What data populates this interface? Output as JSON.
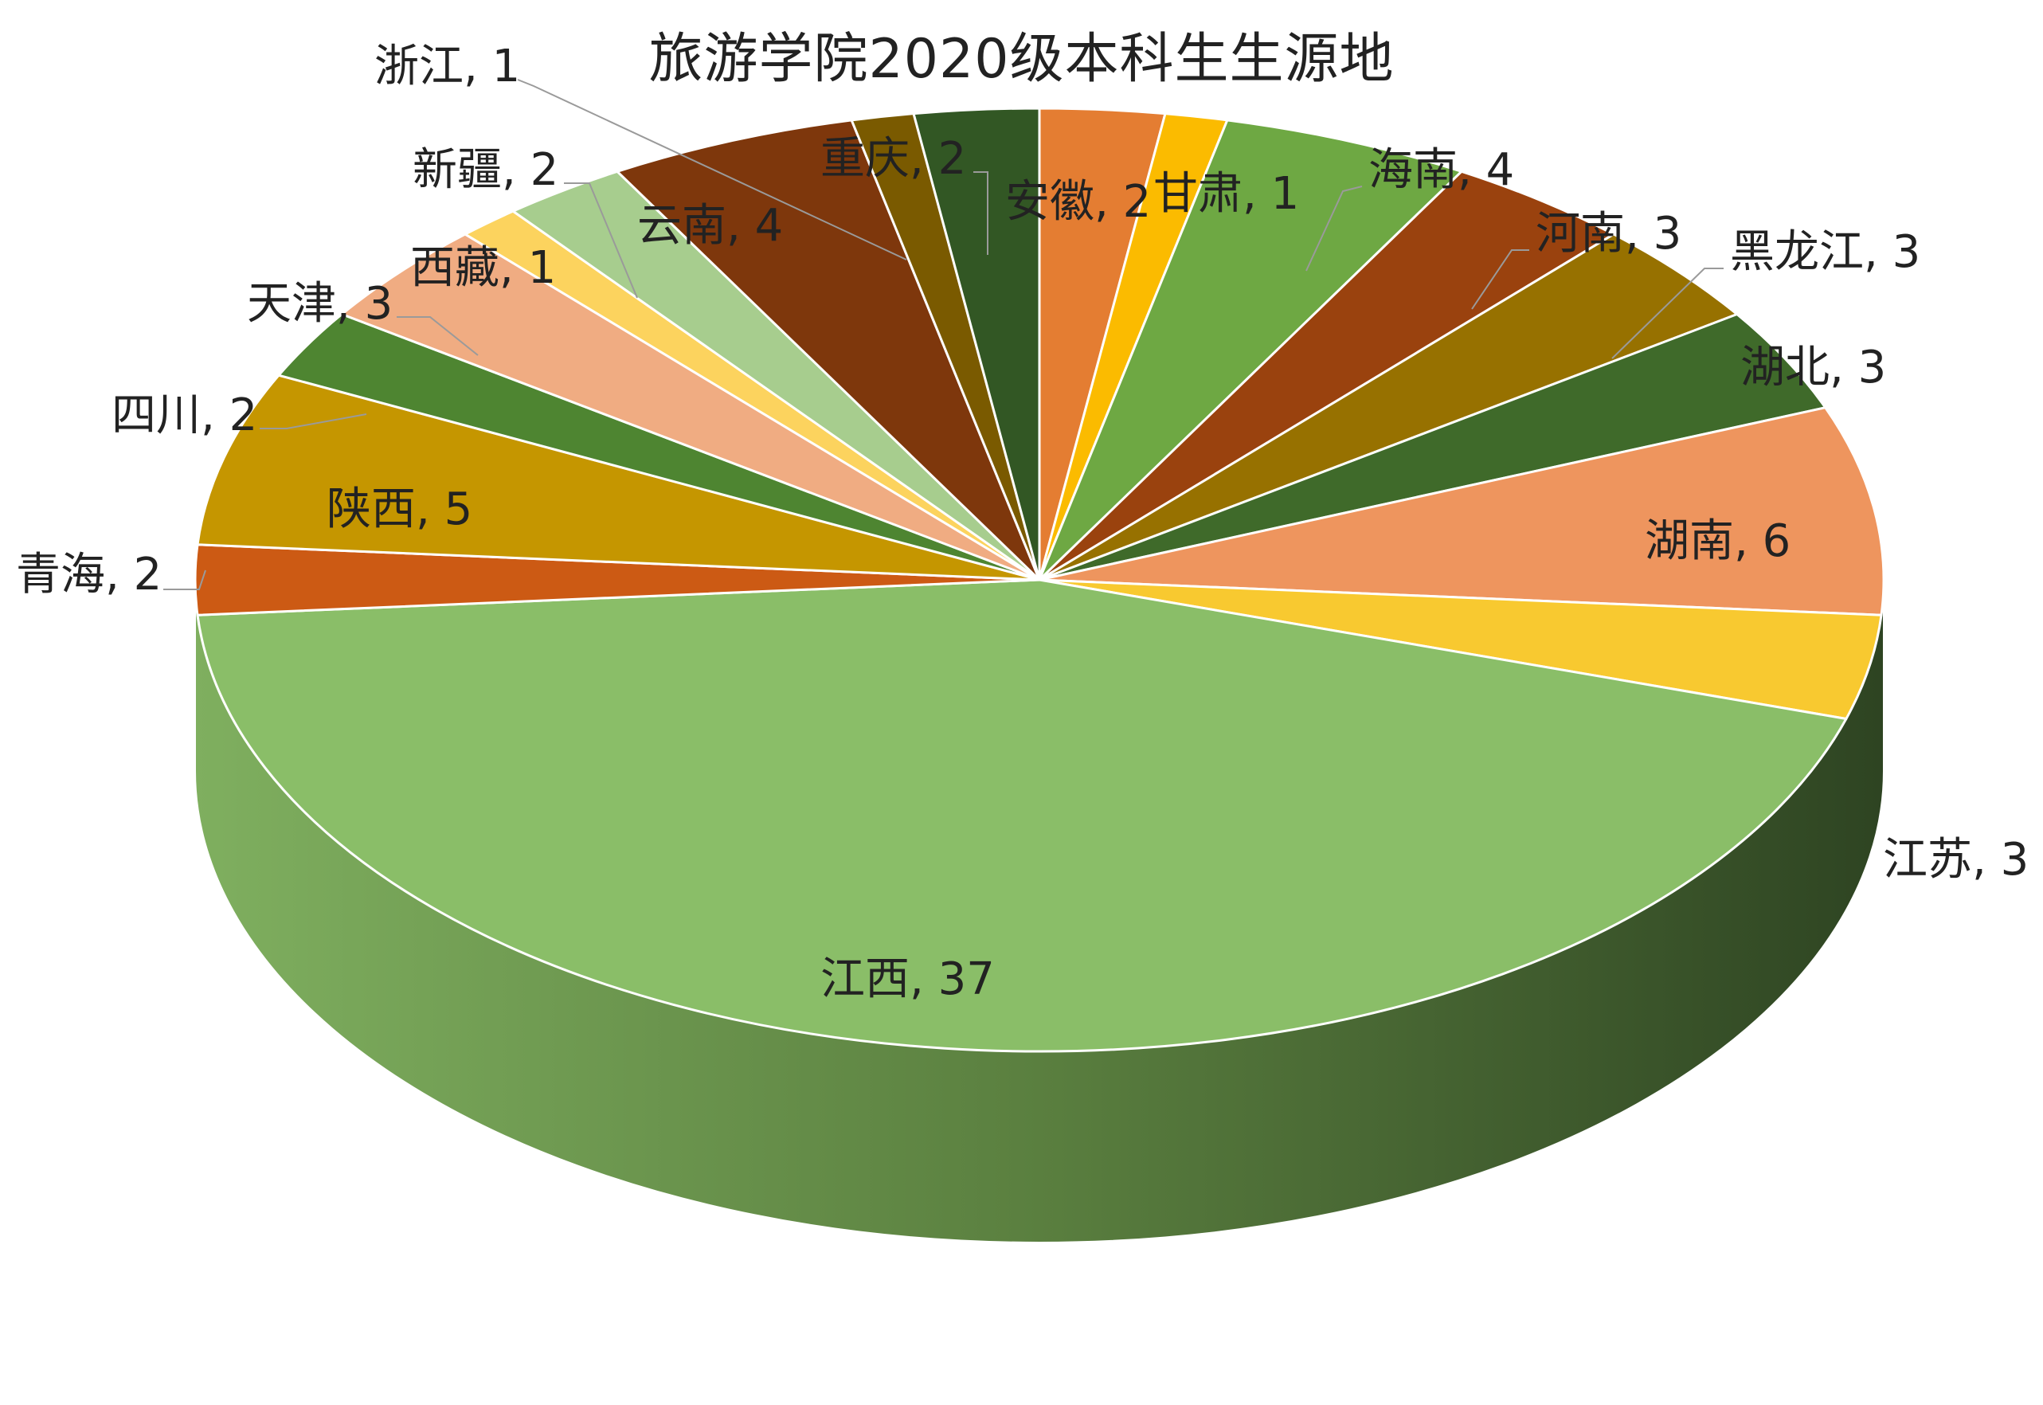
{
  "chart_data": {
    "type": "pie",
    "title": "旅游学院2020级本科生生源地",
    "slices": [
      {
        "name": "安徽",
        "value": 2,
        "color": "#E47D32",
        "label": "安徽, 2"
      },
      {
        "name": "甘肃",
        "value": 1,
        "color": "#FBBB00",
        "label": "甘肃, 1"
      },
      {
        "name": "海南",
        "value": 4,
        "color": "#6EA843",
        "label": "海南, 4"
      },
      {
        "name": "河南",
        "value": 3,
        "color": "#9A420E",
        "label": "河南, 3"
      },
      {
        "name": "黑龙江",
        "value": 3,
        "color": "#977100",
        "label": "黑龙江, 3"
      },
      {
        "name": "湖北",
        "value": 3,
        "color": "#3F6A2A",
        "label": "湖北, 3"
      },
      {
        "name": "湖南",
        "value": 6,
        "color": "#EE955E",
        "label": "湖南, 6"
      },
      {
        "name": "江苏",
        "value": 3,
        "color": "#F8C930",
        "label": "江苏, 3"
      },
      {
        "name": "江西",
        "value": 37,
        "color": "#8ABE68",
        "label": "江西, 37"
      },
      {
        "name": "青海",
        "value": 2,
        "color": "#CC5A14",
        "label": "青海, 2"
      },
      {
        "name": "陕西",
        "value": 5,
        "color": "#C59600",
        "label": "陕西, 5"
      },
      {
        "name": "四川",
        "value": 2,
        "color": "#4E8531",
        "label": "四川, 2"
      },
      {
        "name": "天津",
        "value": 3,
        "color": "#F0AC82",
        "label": "天津, 3"
      },
      {
        "name": "西藏",
        "value": 1,
        "color": "#FCD35E",
        "label": "西藏, 1"
      },
      {
        "name": "新疆",
        "value": 2,
        "color": "#A7CD8E",
        "label": "新疆, 2"
      },
      {
        "name": "云南",
        "value": 4,
        "color": "#7E370C",
        "label": "云南, 4"
      },
      {
        "name": "浙江",
        "value": 1,
        "color": "#7A5A00",
        "label": "浙江, 1"
      },
      {
        "name": "重庆",
        "value": 2,
        "color": "#325724",
        "label": "重庆, 2"
      }
    ],
    "legend": "none",
    "style": "3d-tilted"
  }
}
